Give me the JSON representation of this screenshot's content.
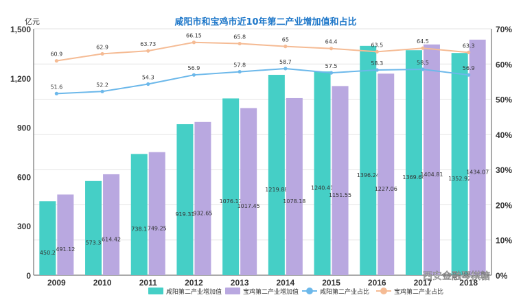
{
  "chart_data": {
    "type": "bar",
    "title": "咸阳市和宝鸡市近10年第二产业增加值和占比",
    "ylabel": "亿元",
    "categories": [
      "2009",
      "2010",
      "2011",
      "2012",
      "2013",
      "2014",
      "2015",
      "2016",
      "2017",
      "2018"
    ],
    "ylim": [
      0,
      1500
    ],
    "y_ticks": [
      "0",
      "300",
      "600",
      "900",
      "1,200",
      "1,500"
    ],
    "y2lim": [
      0,
      70
    ],
    "y2_ticks": [
      "0%",
      "10%",
      "20%",
      "30%",
      "40%",
      "50%",
      "60%",
      "70%"
    ],
    "bar_series": [
      {
        "name": "咸阳第二产业增加值",
        "color": "#45cfc6",
        "values": [
          450.2,
          573.3,
          738.1,
          919.31,
          1076.17,
          1219.88,
          1240.41,
          1396.24,
          1369.64,
          1352.92
        ],
        "labels": [
          "450.2",
          "573.3",
          "738.1",
          "919.31",
          "1076.17",
          "1219.88",
          "1240.41",
          "1396.24",
          "1369.64",
          "1352.92"
        ]
      },
      {
        "name": "宝鸡第二产业增加值",
        "color": "#b9a8e0",
        "values": [
          491.12,
          614.42,
          749.25,
          932.65,
          1017.45,
          1078.18,
          1151.55,
          1227.06,
          1404.81,
          1434.07
        ],
        "labels": [
          "491.12",
          "614.42",
          "749.25",
          "932.65",
          "1017.45",
          "1078.18",
          "1151.55",
          "1227.06",
          "1404.81",
          "1434.07"
        ]
      }
    ],
    "line_series": [
      {
        "name": "咸阳第二产业占比",
        "color": "#6cb8ea",
        "values": [
          51.6,
          52.2,
          54.3,
          56.9,
          57.8,
          58.7,
          57.5,
          58.3,
          58.5,
          56.9
        ],
        "labels": [
          "51.6",
          "52.2",
          "54.3",
          "56.9",
          "57.8",
          "58.7",
          "57.5",
          "58.3",
          "58.5",
          "56.9"
        ]
      },
      {
        "name": "宝鸡第二产业占比",
        "color": "#f5bb94",
        "values": [
          60.9,
          62.9,
          63.73,
          66.15,
          65.8,
          65,
          64.4,
          63.5,
          64.5,
          63.3
        ],
        "labels": [
          "60.9",
          "62.9",
          "63.73",
          "66.15",
          "65.8",
          "65",
          "64.4",
          "63.5",
          "64.5",
          "63.3"
        ]
      }
    ],
    "grid": true,
    "legend_position": "bottom"
  },
  "watermark": "西安金融琴棋糖"
}
